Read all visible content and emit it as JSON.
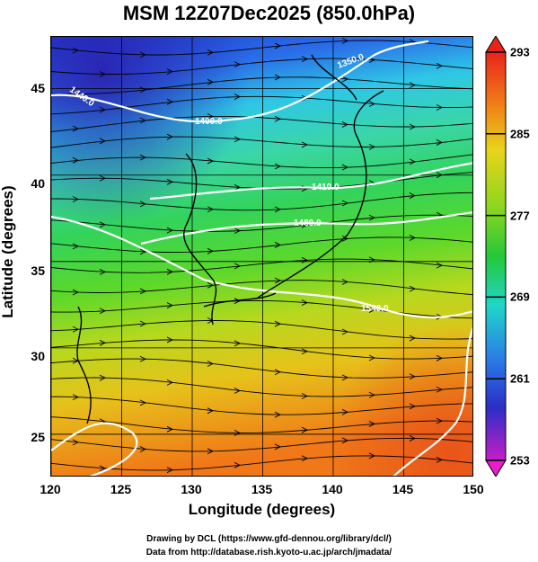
{
  "title": "MSM 12Z07Dec2025 (850.0hPa)",
  "x_axis": {
    "label": "Longitude (degrees)",
    "range": [
      120,
      150
    ],
    "ticks": [
      "120",
      "125",
      "130",
      "135",
      "140",
      "145",
      "150"
    ]
  },
  "y_axis": {
    "label": "Latitude  (degrees)",
    "range": [
      22.5,
      48
    ],
    "ticks": [
      "25",
      "30",
      "35",
      "40",
      "45"
    ]
  },
  "colorbar": {
    "range": [
      253,
      293
    ],
    "labels": [
      "253",
      "261",
      "269",
      "277",
      "285",
      "293"
    ]
  },
  "contour_labels": [
    "1350.0",
    "1440.0",
    "1400.0",
    "1410.0",
    "1480.0",
    "1540.0"
  ],
  "credits": {
    "line1": "Drawing by DCL (https://www.gfd-dennou.org/library/dcl/)",
    "line2": "Data from http://database.rish.kyoto-u.ac.jp/arch/jmadata/"
  },
  "chart_data": {
    "type": "heatmap",
    "title": "MSM 12Z07Dec2025 (850.0hPa)",
    "xlabel": "Longitude (degrees)",
    "ylabel": "Latitude  (degrees)",
    "xlim": [
      120,
      150
    ],
    "ylim": [
      22.5,
      48
    ],
    "colorbar_range": [
      253,
      293
    ],
    "grid": true,
    "overlays": [
      "streamlines",
      "geopotential height contours (white)",
      "coastlines"
    ]
  }
}
